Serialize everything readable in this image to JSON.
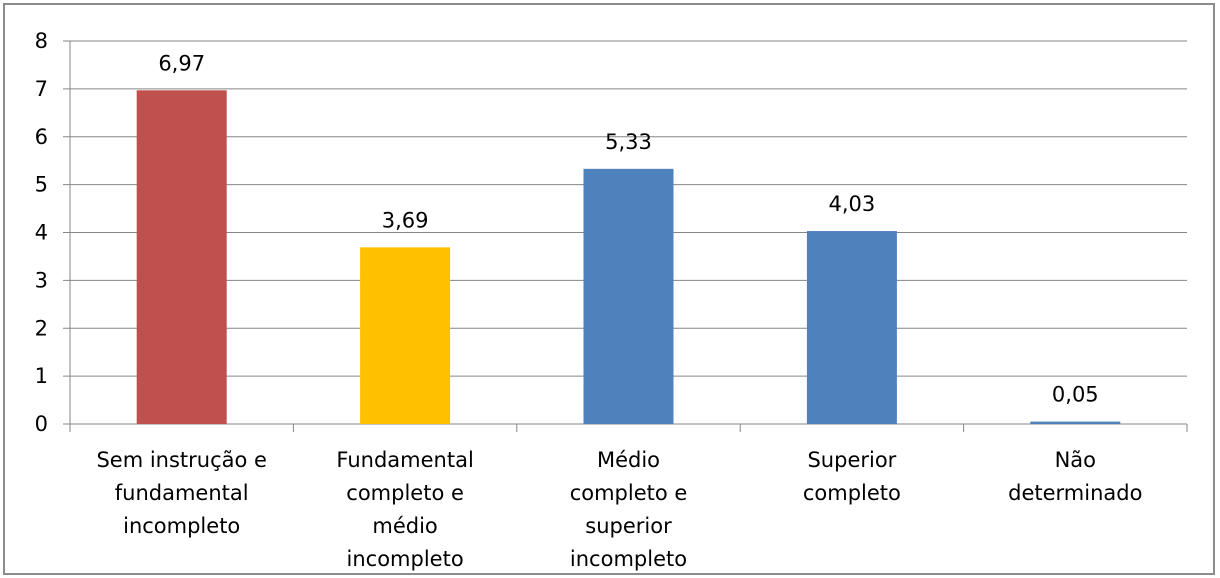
{
  "chart_data": {
    "type": "bar",
    "title": "",
    "xlabel": "",
    "ylabel": "",
    "ylim": [
      0,
      8
    ],
    "yticks": [
      0,
      1,
      2,
      3,
      4,
      5,
      6,
      7,
      8
    ],
    "grid": true,
    "legend": "none",
    "categories": [
      [
        "Sem instrução e",
        "fundamental",
        "incompleto"
      ],
      [
        "Fundamental",
        "completo e",
        "médio",
        "incompleto"
      ],
      [
        "Médio",
        "completo e",
        "superior",
        "incompleto"
      ],
      [
        "Superior",
        "completo"
      ],
      [
        "Não",
        "determinado"
      ]
    ],
    "values": [
      6.97,
      3.69,
      5.33,
      4.03,
      0.05
    ],
    "value_labels": [
      "6,97",
      "3,69",
      "5,33",
      "4,03",
      "0,05"
    ],
    "colors": [
      "#C0504D",
      "#FFC000",
      "#4F81BD",
      "#4F81BD",
      "#4F81BD"
    ]
  }
}
